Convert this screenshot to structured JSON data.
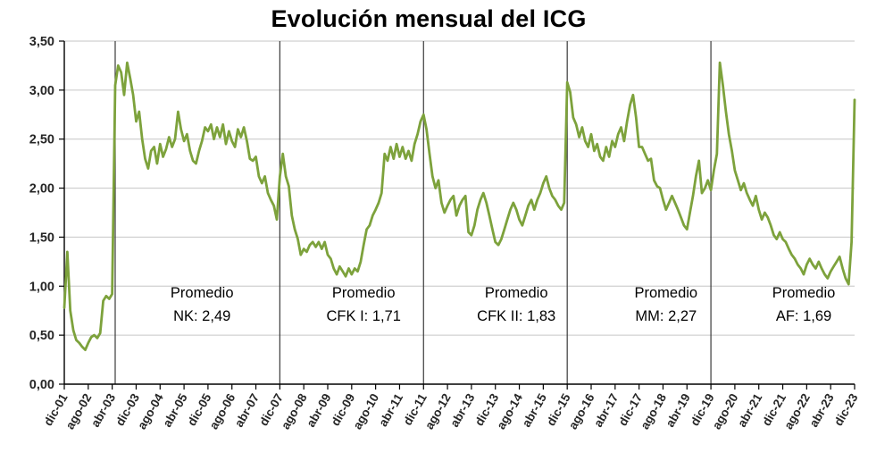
{
  "title": "Evolución mensual del ICG",
  "chart_data": {
    "type": "line",
    "series_name": "ICG mensual",
    "x_start_label": "dic-01",
    "x_label_step_months": 8,
    "x_labels": [
      "dic-01",
      "ago-02",
      "abr-03",
      "dic-03",
      "ago-04",
      "abr-05",
      "dic-05",
      "ago-06",
      "abr-07",
      "dic-07",
      "ago-08",
      "abr-09",
      "dic-09",
      "ago-10",
      "abr-11",
      "dic-11",
      "ago-12",
      "abr-13",
      "dic-13",
      "ago-14",
      "abr-15",
      "dic-15",
      "ago-16",
      "abr-17",
      "dic-17",
      "ago-18",
      "abr-19",
      "dic-19",
      "ago-20",
      "abr-21",
      "dic-21",
      "ago-22",
      "abr-23",
      "dic-23"
    ],
    "ylim": [
      0,
      3.5
    ],
    "y_tick_step": 0.5,
    "y_tick_labels": [
      "0,00",
      "0,50",
      "1,00",
      "1,50",
      "2,00",
      "2,50",
      "3,00",
      "3,50"
    ],
    "grid": true,
    "legend": "none",
    "line_color": "#7da23c",
    "grid_color": "#c6c6c6",
    "axis_color": "#000000",
    "divider_color": "#3a3a3a",
    "dividers_month_index": [
      17,
      72,
      120,
      168,
      216
    ],
    "annotations": [
      {
        "line1": "Promedio",
        "line2": "NK: 2,49",
        "center_month": 46,
        "average": 2.49
      },
      {
        "line1": "Promedio",
        "line2": "CFK I: 1,71",
        "center_month": 100,
        "average": 1.71
      },
      {
        "line1": "Promedio",
        "line2": "CFK II: 1,83",
        "center_month": 151,
        "average": 1.83
      },
      {
        "line1": "Promedio",
        "line2": "MM: 2,27",
        "center_month": 201,
        "average": 2.27
      },
      {
        "line1": "Promedio",
        "line2": "AF: 1,69",
        "center_month": 247,
        "average": 1.69
      }
    ],
    "values": [
      0.78,
      1.35,
      0.75,
      0.55,
      0.45,
      0.42,
      0.38,
      0.35,
      0.42,
      0.48,
      0.5,
      0.47,
      0.52,
      0.85,
      0.9,
      0.87,
      0.92,
      3.05,
      3.25,
      3.18,
      2.95,
      3.28,
      3.12,
      2.95,
      2.68,
      2.78,
      2.5,
      2.3,
      2.2,
      2.38,
      2.42,
      2.25,
      2.45,
      2.32,
      2.4,
      2.52,
      2.42,
      2.5,
      2.78,
      2.6,
      2.48,
      2.55,
      2.38,
      2.28,
      2.25,
      2.38,
      2.48,
      2.62,
      2.58,
      2.65,
      2.5,
      2.62,
      2.52,
      2.65,
      2.45,
      2.58,
      2.48,
      2.42,
      2.6,
      2.52,
      2.62,
      2.48,
      2.3,
      2.28,
      2.32,
      2.12,
      2.05,
      2.12,
      1.95,
      1.88,
      1.82,
      1.68,
      2.12,
      2.35,
      2.12,
      2.02,
      1.72,
      1.58,
      1.48,
      1.32,
      1.38,
      1.35,
      1.42,
      1.45,
      1.4,
      1.45,
      1.38,
      1.45,
      1.32,
      1.28,
      1.18,
      1.12,
      1.2,
      1.15,
      1.1,
      1.18,
      1.12,
      1.18,
      1.15,
      1.25,
      1.42,
      1.58,
      1.62,
      1.72,
      1.78,
      1.85,
      1.95,
      2.35,
      2.28,
      2.42,
      2.3,
      2.45,
      2.32,
      2.42,
      2.3,
      2.38,
      2.28,
      2.45,
      2.55,
      2.68,
      2.75,
      2.6,
      2.35,
      2.12,
      2.0,
      2.08,
      1.85,
      1.75,
      1.82,
      1.88,
      1.92,
      1.72,
      1.82,
      1.88,
      1.92,
      1.55,
      1.52,
      1.62,
      1.78,
      1.88,
      1.95,
      1.85,
      1.72,
      1.58,
      1.45,
      1.42,
      1.48,
      1.58,
      1.68,
      1.78,
      1.85,
      1.78,
      1.68,
      1.62,
      1.72,
      1.82,
      1.88,
      1.78,
      1.88,
      1.95,
      2.05,
      2.12,
      2.0,
      1.92,
      1.88,
      1.82,
      1.78,
      1.85,
      3.08,
      2.98,
      2.72,
      2.65,
      2.52,
      2.62,
      2.48,
      2.42,
      2.55,
      2.38,
      2.45,
      2.32,
      2.28,
      2.42,
      2.32,
      2.48,
      2.42,
      2.55,
      2.62,
      2.48,
      2.68,
      2.85,
      2.95,
      2.72,
      2.42,
      2.42,
      2.35,
      2.28,
      2.3,
      2.08,
      2.02,
      2.0,
      1.88,
      1.78,
      1.85,
      1.92,
      1.85,
      1.78,
      1.7,
      1.62,
      1.58,
      1.75,
      1.92,
      2.12,
      2.28,
      1.95,
      2.0,
      2.08,
      1.98,
      2.18,
      2.35,
      3.28,
      3.05,
      2.78,
      2.55,
      2.38,
      2.18,
      2.08,
      1.98,
      2.05,
      1.95,
      1.88,
      1.82,
      1.92,
      1.78,
      1.68,
      1.75,
      1.7,
      1.62,
      1.52,
      1.48,
      1.55,
      1.48,
      1.45,
      1.38,
      1.32,
      1.28,
      1.22,
      1.18,
      1.12,
      1.22,
      1.28,
      1.22,
      1.18,
      1.25,
      1.18,
      1.12,
      1.08,
      1.15,
      1.2,
      1.25,
      1.3,
      1.18,
      1.08,
      1.02,
      1.45,
      2.9
    ]
  }
}
